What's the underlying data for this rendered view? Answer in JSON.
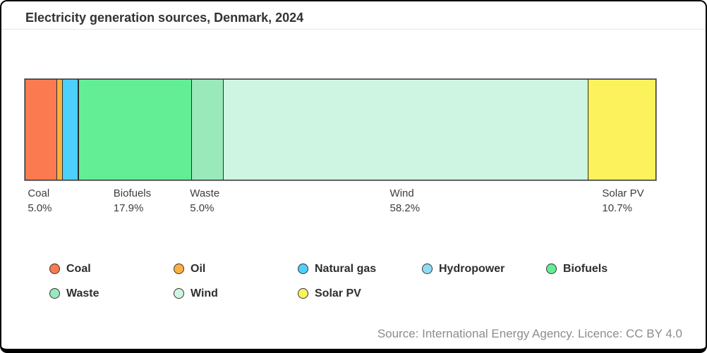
{
  "chart": {
    "title": "Electricity generation sources, Denmark, 2024",
    "source": "Source: International Energy Agency. Licence: CC BY 4.0"
  },
  "chart_data": {
    "type": "bar",
    "subtype": "horizontal-stacked-single-bar",
    "title": "Electricity generation sources, Denmark, 2024",
    "unit": "%",
    "xlim": [
      0,
      100
    ],
    "grid": false,
    "legend_position": "bottom",
    "colors": {
      "segment_border": "#2d2d2d",
      "bar_outline": "#9a9a9a",
      "text": "#3d3d3d",
      "source_text": "#8c8c8c"
    },
    "segments": [
      {
        "name": "Coal",
        "value": 5.0,
        "label": "5.0%",
        "labeled": true,
        "color": "#FB7A50"
      },
      {
        "name": "Oil",
        "value": 0.7,
        "label": "",
        "labeled": false,
        "color": "#FBB040"
      },
      {
        "name": "Natural gas",
        "value": 2.4,
        "label": "",
        "labeled": false,
        "color": "#4DD0FC"
      },
      {
        "name": "Hydropower",
        "value": 0.05,
        "label": "",
        "labeled": false,
        "color": "#8FDCF8"
      },
      {
        "name": "Biofuels",
        "value": 17.9,
        "label": "17.9%",
        "labeled": true,
        "color": "#63EE95"
      },
      {
        "name": "Waste",
        "value": 5.0,
        "label": "5.0%",
        "labeled": true,
        "color": "#99E9BB"
      },
      {
        "name": "Wind",
        "value": 58.2,
        "label": "58.2%",
        "labeled": true,
        "color": "#CEF5E1"
      },
      {
        "name": "Solar PV",
        "value": 10.7,
        "label": "10.7%",
        "labeled": true,
        "color": "#FCF35C"
      }
    ]
  }
}
